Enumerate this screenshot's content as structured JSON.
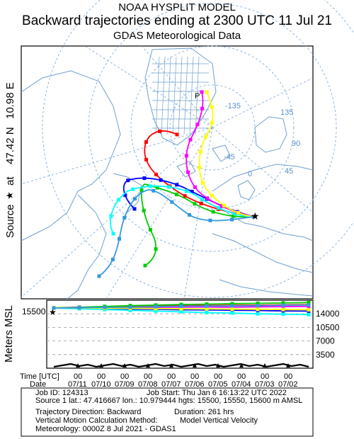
{
  "header": {
    "line1": "NOAA HYSPLIT MODEL",
    "line2": "Backward trajectories ending at 2300 UTC 11 Jul 21",
    "line3": "GDAS Meteorological Data"
  },
  "side_label": {
    "source": "Source",
    "star": "★",
    "at": "at",
    "lat": "47.42 N",
    "lon": "10.98 E"
  },
  "map": {
    "lon_labels": [
      "-135",
      "135",
      "90",
      "45",
      "0",
      "-45"
    ],
    "pole_marker": "P",
    "colors": {
      "land": "#6f9fcf",
      "graticule": "#7faedd",
      "trajectories": [
        "#ff0000",
        "#0000ff",
        "#00cc00",
        "#00ffff",
        "#ff00ff",
        "#ffff00",
        "#3399dd"
      ]
    }
  },
  "chart_data": {
    "type": "line",
    "ylabel": "Meters MSL",
    "start_height_label": "15500",
    "y_ticks": [
      "14000",
      "10500",
      "7000",
      "3500"
    ],
    "xlabel_time": "Time [UTC]",
    "xlabel_date": "Date",
    "time_ticks": [
      "00",
      "00",
      "00",
      "00",
      "00",
      "00",
      "00",
      "00",
      "00",
      "00"
    ],
    "date_ticks": [
      "07/11",
      "07/10",
      "07/09",
      "07/08",
      "07/07",
      "07/06",
      "07/05",
      "07/04",
      "07/03",
      "07/02"
    ],
    "ylim": [
      0,
      17500
    ],
    "trajectory_heights_m": {
      "series": [
        {
          "values": [
            15500,
            15650,
            15800,
            15900,
            16000,
            16100,
            16150,
            16200,
            16250,
            16300,
            16350
          ]
        },
        {
          "values": [
            15550,
            15450,
            15300,
            15200,
            15150,
            15050,
            15000,
            14900,
            14850,
            14750,
            14700
          ]
        },
        {
          "values": [
            15600,
            15700,
            15900,
            16100,
            16250,
            16400,
            16500,
            16600,
            16700,
            16800,
            16900
          ]
        },
        {
          "values": [
            15500,
            15300,
            15100,
            14900,
            14700,
            14500,
            14300,
            14200,
            14000,
            13900,
            13800
          ]
        },
        {
          "values": [
            15550,
            15600,
            15550,
            15600,
            15650,
            15700,
            15750,
            15700,
            15800,
            15850,
            15900
          ]
        },
        {
          "values": [
            15600,
            15500,
            15450,
            15400,
            15350,
            15300,
            15250,
            15200,
            15150,
            15100,
            15050
          ]
        },
        {
          "values": [
            15500,
            15550,
            15650,
            15700,
            15850,
            15950,
            16000,
            16050,
            16100,
            16200,
            16250
          ]
        }
      ]
    }
  },
  "info": {
    "job_id": "Job ID: 124313",
    "job_start": "Job Start: Thu Jan  6 16:13:22 UTC 2022",
    "source_line": "Source 1 lat.: 47.416667  lon.: 10.979444  hgts: 15500, 15550, 15600 m AMSL",
    "direction": "Trajectory Direction: Backward",
    "duration": "Duration: 261 hrs",
    "vmotion": "Vertical Motion Calculation Method:",
    "vmotion_val": "Model Vertical Velocity",
    "meteorology": "Meteorology: 0000Z  8 Jul 2021 - GDAS1"
  }
}
